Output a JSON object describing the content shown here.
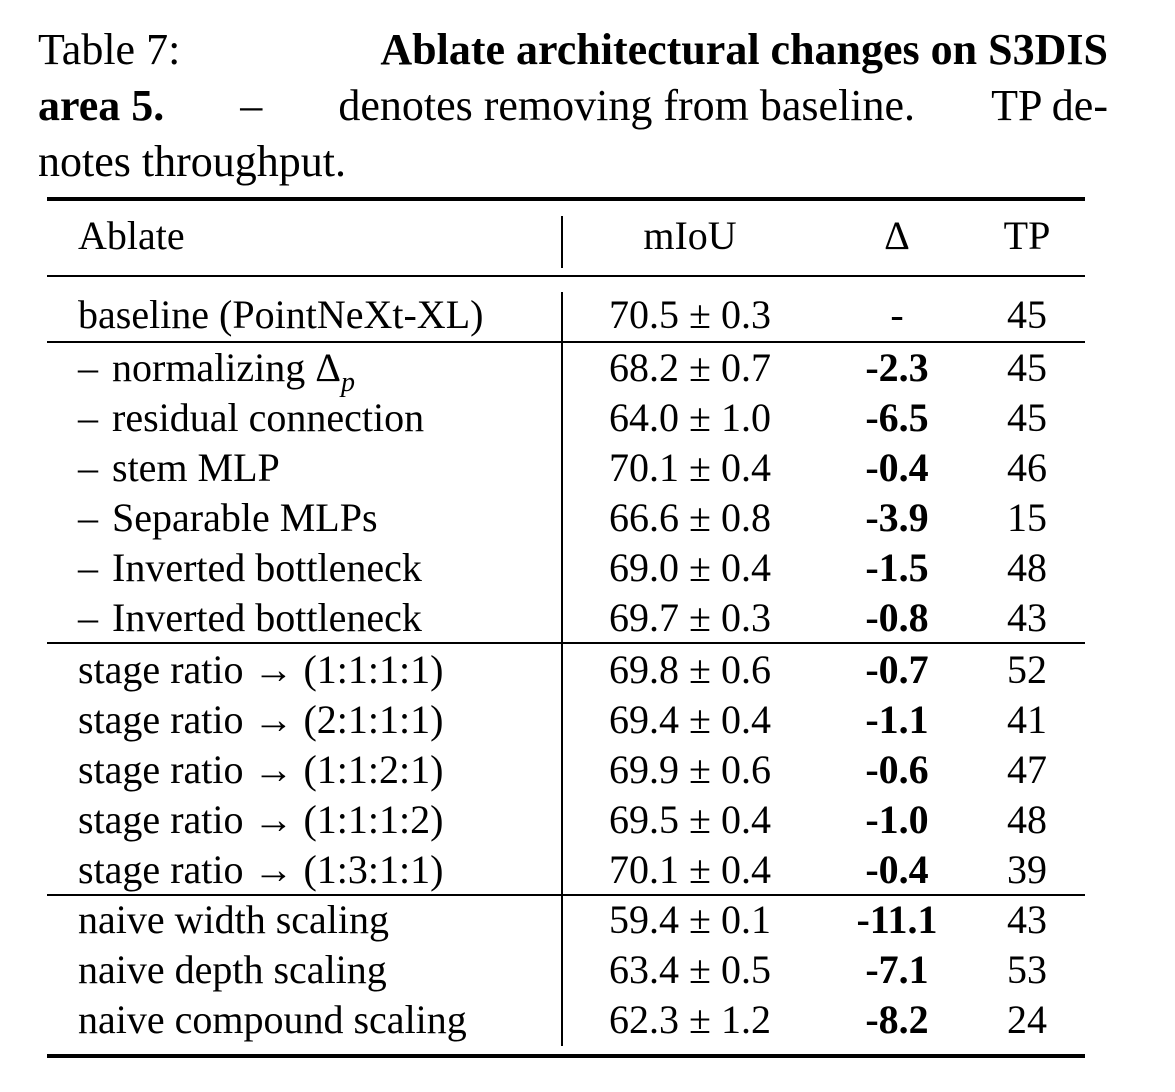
{
  "caption": {
    "prefix": "Table 7:",
    "title_line1": "Ablate architectural changes on S3DIS",
    "title_line2": "area 5.",
    "text_line2_a": "–",
    "text_line2_b": "denotes removing from baseline.",
    "text_line2_c": "TP de-",
    "text_line3": "notes throughput."
  },
  "table": {
    "headers": {
      "ablate": "Ablate",
      "miou": "mIoU",
      "delta": "Δ",
      "tp": "TP"
    },
    "groups": [
      [
        {
          "ablate": "baseline (PointNeXt-XL)",
          "miou": "70.5 ± 0.3",
          "delta": "-",
          "tp": "45"
        }
      ],
      [
        {
          "prefix": "–",
          "ablate": "normalizing Δ",
          "sub": "p",
          "miou": "68.2 ± 0.7",
          "delta": "-2.3",
          "tp": "45"
        },
        {
          "prefix": "–",
          "ablate": "residual connection",
          "miou": "64.0 ± 1.0",
          "delta": "-6.5",
          "tp": "45"
        },
        {
          "prefix": "–",
          "ablate": "stem MLP",
          "miou": "70.1 ± 0.4",
          "delta": "-0.4",
          "tp": "46"
        },
        {
          "prefix": "–",
          "ablate": "Separable MLPs",
          "miou": "66.6 ± 0.8",
          "delta": "-3.9",
          "tp": "15"
        },
        {
          "prefix": "–",
          "ablate": "Inverted bottleneck",
          "miou": "69.0 ± 0.4",
          "delta": "-1.5",
          "tp": "48"
        },
        {
          "prefix": "–",
          "ablate": "Inverted bottleneck",
          "miou": "69.7 ± 0.3",
          "delta": "-0.8",
          "tp": "43"
        }
      ],
      [
        {
          "ablate": "stage ratio → (1:1:1:1)",
          "miou": "69.8 ± 0.6",
          "delta": "-0.7",
          "tp": "52"
        },
        {
          "ablate": "stage ratio → (2:1:1:1)",
          "miou": "69.4 ± 0.4",
          "delta": "-1.1",
          "tp": "41"
        },
        {
          "ablate": "stage ratio → (1:1:2:1)",
          "miou": "69.9 ± 0.6",
          "delta": "-0.6",
          "tp": "47"
        },
        {
          "ablate": "stage ratio → (1:1:1:2)",
          "miou": "69.5 ± 0.4",
          "delta": "-1.0",
          "tp": "48"
        },
        {
          "ablate": "stage ratio → (1:3:1:1)",
          "miou": "70.1 ± 0.4",
          "delta": "-0.4",
          "tp": "39"
        }
      ],
      [
        {
          "ablate": "naive width scaling",
          "miou": "59.4 ± 0.1",
          "delta": "-11.1",
          "tp": "43"
        },
        {
          "ablate": "naive depth scaling",
          "miou": "63.4 ± 0.5",
          "delta": "-7.1",
          "tp": "53"
        },
        {
          "ablate": "naive compound scaling",
          "miou": "62.3 ± 1.2",
          "delta": "-8.2",
          "tp": "24"
        }
      ]
    ]
  }
}
